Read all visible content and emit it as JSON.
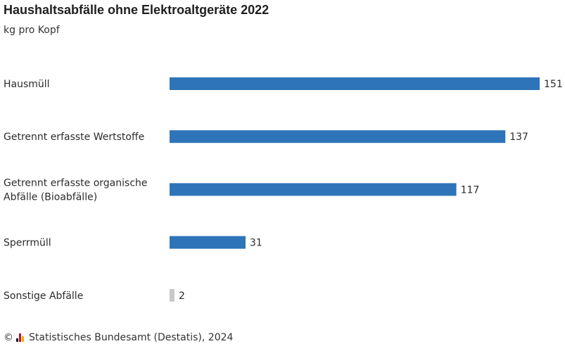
{
  "header": {
    "title": "Haushaltsabfälle ohne Elektroaltgeräte 2022",
    "subtitle": "kg pro Kopf"
  },
  "chart_data": {
    "type": "bar",
    "orientation": "horizontal",
    "title": "Haushaltsabfälle ohne Elektroaltgeräte 2022",
    "subtitle": "kg pro Kopf",
    "categories": [
      [
        "Hausmüll"
      ],
      [
        "Getrennt erfasste Wertstoffe"
      ],
      [
        "Getrennt erfasste organische",
        "Abfälle (Bioabfälle)"
      ],
      [
        "Sperrmüll"
      ],
      [
        "Sonstige Abfälle"
      ]
    ],
    "values": [
      151,
      137,
      117,
      31,
      2
    ],
    "bar_colors": [
      "#2e74b8",
      "#2e74b8",
      "#2e74b8",
      "#2e74b8",
      "#c8c8c8"
    ],
    "xlim": [
      0,
      151
    ],
    "grid": false,
    "legend": "none"
  },
  "footer": {
    "copyright_symbol": "©",
    "source": "Statistisches Bundesamt (Destatis), 2024"
  }
}
